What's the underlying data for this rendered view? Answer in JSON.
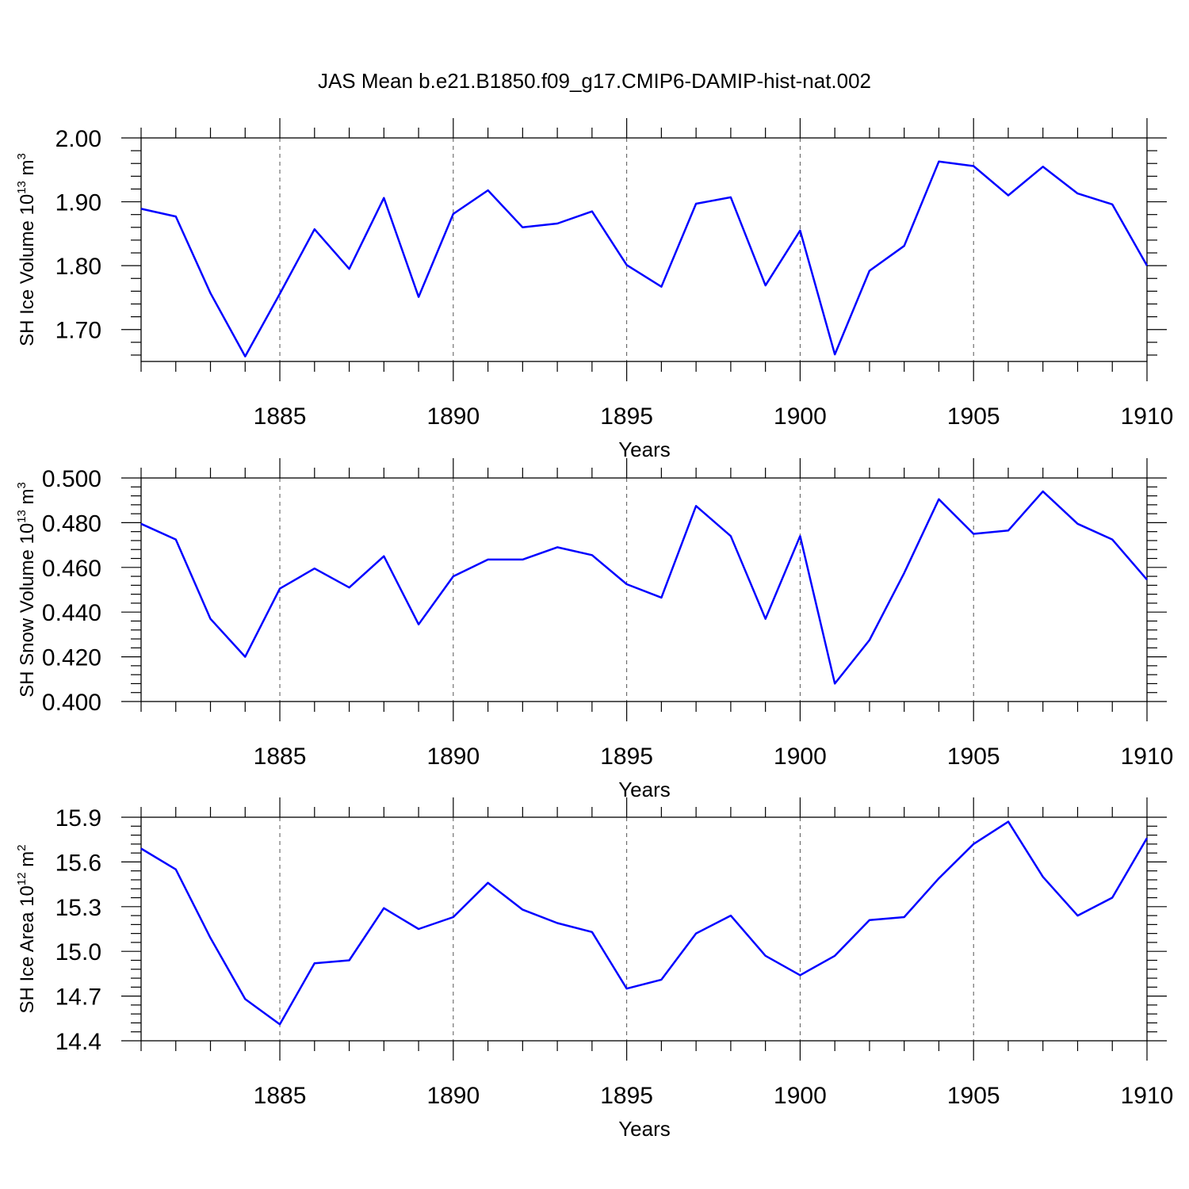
{
  "title": "JAS Mean b.e21.B1850.f09_g17.CMIP6-DAMIP-hist-nat.002",
  "colors": {
    "line": "#0000ff",
    "grid": "#555555"
  },
  "chart_data": [
    {
      "type": "line",
      "ylabel_main": "SH Ice Volume 10",
      "ylabel_exp1": "13",
      "ylabel_mid": " m",
      "ylabel_exp2": "3",
      "xlabel": "Years",
      "xlim": [
        1881,
        1910
      ],
      "ylim": [
        1.65,
        2.0
      ],
      "yticks": [
        1.7,
        1.8,
        1.9,
        2.0
      ],
      "ytick_labels": [
        "1.70",
        "1.80",
        "1.90",
        "2.00"
      ],
      "xticks": [
        1885,
        1890,
        1895,
        1900,
        1905,
        1910
      ],
      "xtick_labels": [
        "1885",
        "1890",
        "1895",
        "1900",
        "1905",
        "1910"
      ],
      "grid_x": true,
      "x": [
        1881,
        1882,
        1883,
        1884,
        1885,
        1886,
        1887,
        1888,
        1889,
        1890,
        1891,
        1892,
        1893,
        1894,
        1895,
        1896,
        1897,
        1898,
        1899,
        1900,
        1901,
        1902,
        1903,
        1904,
        1905,
        1906,
        1907,
        1908,
        1909,
        1910
      ],
      "y": [
        1.889,
        1.877,
        1.757,
        1.658,
        1.756,
        1.857,
        1.795,
        1.906,
        1.751,
        1.881,
        1.918,
        1.86,
        1.866,
        1.885,
        1.801,
        1.767,
        1.897,
        1.907,
        1.769,
        1.855,
        1.661,
        1.792,
        1.831,
        1.963,
        1.956,
        1.91,
        1.955,
        1.913,
        1.896,
        1.8
      ]
    },
    {
      "type": "line",
      "ylabel_main": "SH Snow Volume 10",
      "ylabel_exp1": "13",
      "ylabel_mid": " m",
      "ylabel_exp2": "3",
      "xlabel": "Years",
      "xlim": [
        1881,
        1910
      ],
      "ylim": [
        0.4,
        0.5
      ],
      "yticks": [
        0.4,
        0.42,
        0.44,
        0.46,
        0.48,
        0.5
      ],
      "ytick_labels": [
        "0.400",
        "0.420",
        "0.440",
        "0.460",
        "0.480",
        "0.500"
      ],
      "xticks": [
        1885,
        1890,
        1895,
        1900,
        1905,
        1910
      ],
      "xtick_labels": [
        "1885",
        "1890",
        "1895",
        "1900",
        "1905",
        "1910"
      ],
      "grid_x": true,
      "x": [
        1881,
        1882,
        1883,
        1884,
        1885,
        1886,
        1887,
        1888,
        1889,
        1890,
        1891,
        1892,
        1893,
        1894,
        1895,
        1896,
        1897,
        1898,
        1899,
        1900,
        1901,
        1902,
        1903,
        1904,
        1905,
        1906,
        1907,
        1908,
        1909,
        1910
      ],
      "y": [
        0.4795,
        0.4725,
        0.437,
        0.42,
        0.4505,
        0.4595,
        0.451,
        0.465,
        0.4345,
        0.456,
        0.4635,
        0.4635,
        0.469,
        0.4655,
        0.4525,
        0.4465,
        0.4875,
        0.474,
        0.437,
        0.474,
        0.408,
        0.4275,
        0.4575,
        0.4905,
        0.475,
        0.4765,
        0.494,
        0.4795,
        0.4725,
        0.4545
      ]
    },
    {
      "type": "line",
      "ylabel_main": "SH Ice Area 10",
      "ylabel_exp1": "12",
      "ylabel_mid": " m",
      "ylabel_exp2": "2",
      "xlabel": "Years",
      "xlim": [
        1881,
        1910
      ],
      "ylim": [
        14.4,
        15.9
      ],
      "yticks": [
        14.4,
        14.7,
        15.0,
        15.3,
        15.6,
        15.9
      ],
      "ytick_labels": [
        "14.4",
        "14.7",
        "15.0",
        "15.3",
        "15.6",
        "15.9"
      ],
      "xticks": [
        1885,
        1890,
        1895,
        1900,
        1905,
        1910
      ],
      "xtick_labels": [
        "1885",
        "1890",
        "1895",
        "1900",
        "1905",
        "1910"
      ],
      "grid_x": true,
      "x": [
        1881,
        1882,
        1883,
        1884,
        1885,
        1886,
        1887,
        1888,
        1889,
        1890,
        1891,
        1892,
        1893,
        1894,
        1895,
        1896,
        1897,
        1898,
        1899,
        1900,
        1901,
        1902,
        1903,
        1904,
        1905,
        1906,
        1907,
        1908,
        1909,
        1910
      ],
      "y": [
        15.69,
        15.55,
        15.09,
        14.68,
        14.51,
        14.92,
        14.94,
        15.29,
        15.15,
        15.23,
        15.46,
        15.28,
        15.19,
        15.13,
        14.75,
        14.81,
        15.12,
        15.24,
        14.97,
        14.84,
        14.97,
        15.21,
        15.23,
        15.49,
        15.72,
        15.87,
        15.5,
        15.24,
        15.36,
        15.76
      ]
    }
  ]
}
